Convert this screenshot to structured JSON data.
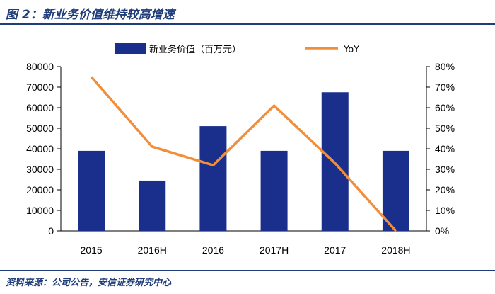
{
  "figure_title": "图 2：新业务价值维持较高增速",
  "source": "资料来源：公司公告，安信证券研究中心",
  "colors": {
    "bar": "#1a2f8c",
    "line": "#f28e3a",
    "accent": "#1f3d7a"
  },
  "chart_data": {
    "type": "bar",
    "categories": [
      "2015",
      "2016H",
      "2016",
      "2017H",
      "2017",
      "2018H"
    ],
    "series": [
      {
        "name": "新业务价值（百万元）",
        "kind": "bar",
        "axis": "left",
        "values": [
          39000,
          24500,
          51000,
          39000,
          67500,
          39000
        ]
      },
      {
        "name": "YoY",
        "kind": "line",
        "axis": "right",
        "values": [
          0.75,
          0.41,
          0.32,
          0.61,
          0.33,
          0.0
        ]
      }
    ],
    "ylim_left": [
      0,
      80000
    ],
    "yticks_left": [
      "0",
      "10000",
      "20000",
      "30000",
      "40000",
      "50000",
      "60000",
      "70000",
      "80000"
    ],
    "ylim_right": [
      0,
      0.8
    ],
    "yticks_right": [
      "0%",
      "10%",
      "20%",
      "30%",
      "40%",
      "50%",
      "60%",
      "70%",
      "80%"
    ],
    "legend_position": "top",
    "grid": false
  }
}
